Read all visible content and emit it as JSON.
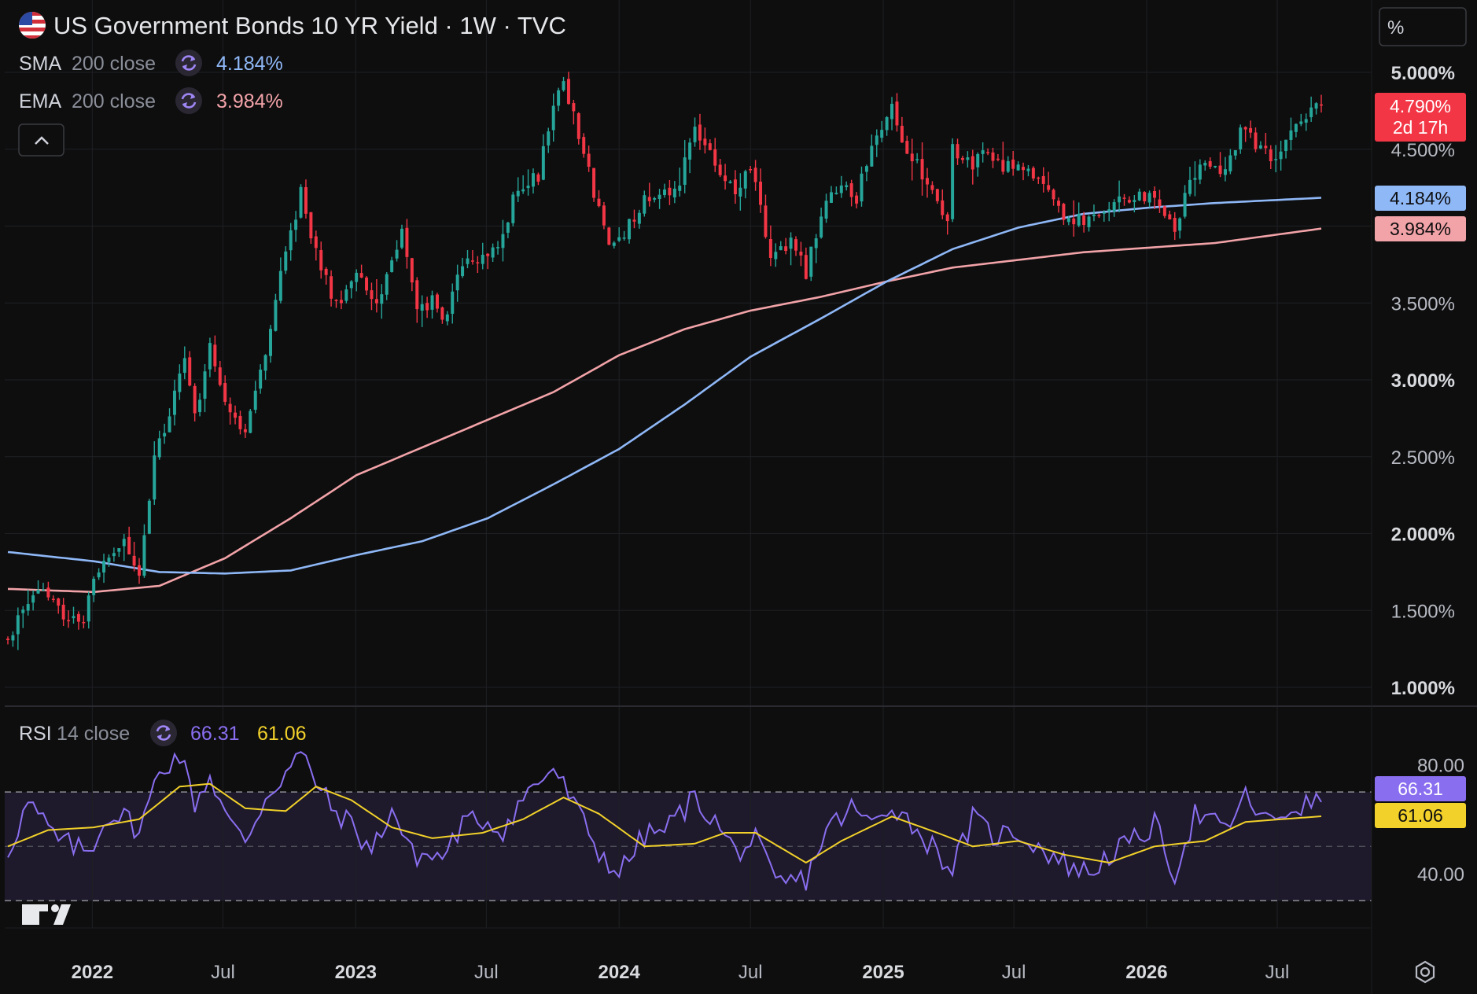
{
  "header": {
    "title": "US Government Bonds 10 YR Yield · 1W · TVC",
    "scale_button_label": "%",
    "collapse_icon": "chevron-up-icon",
    "flag_icon": "us-flag-icon",
    "settings_icon": "gear-icon"
  },
  "indicators": {
    "sma": {
      "name": "SMA",
      "args": "200 close",
      "value": "4.184%",
      "color": "#8fb8f7",
      "icon": "refresh-icon"
    },
    "ema": {
      "name": "EMA",
      "args": "200 close",
      "value": "3.984%",
      "color": "#f2a3a8",
      "icon": "refresh-icon"
    },
    "rsi": {
      "name": "RSI",
      "args": "14 close",
      "value": "66.31",
      "ma_value": "61.06",
      "color": "#8a6ef0",
      "ma_color": "#f2d12a",
      "icon": "refresh-icon"
    }
  },
  "price_tag": {
    "value": "4.790%",
    "countdown": "2d 17h",
    "color": "#f23645"
  },
  "colors": {
    "up": "#26a69a",
    "down": "#f23645",
    "background": "#0e0e0f",
    "grid": "#1f2024"
  },
  "chart_data": [
    {
      "type": "candlestick",
      "title": "US Government Bonds 10 YR Yield · 1W · TVC",
      "ylim": [
        1.0,
        5.0
      ],
      "yticks": [
        "5.000%",
        "4.500%",
        "4.000%",
        "3.500%",
        "3.000%",
        "2.500%",
        "2.000%",
        "1.500%",
        "1.000%"
      ],
      "xticks": [
        "2022",
        "Jul",
        "2023",
        "Jul",
        "2024",
        "Jul",
        "2025",
        "Jul",
        "2026",
        "Jul"
      ],
      "x_tick_dates": [
        "2022-01-01",
        "2022-07-01",
        "2023-01-01",
        "2023-07-01",
        "2024-01-01",
        "2024-07-01",
        "2025-01-01",
        "2025-07-01",
        "2026-01-01",
        "2026-07-01"
      ],
      "x_range": [
        "2021-09-06",
        "2026-08-31"
      ],
      "last_close": 4.79,
      "close_anchors": [
        [
          "2021-09-06",
          1.33
        ],
        [
          "2021-10-18",
          1.62
        ],
        [
          "2021-11-29",
          1.45
        ],
        [
          "2021-12-20",
          1.46
        ],
        [
          "2022-01-10",
          1.78
        ],
        [
          "2022-02-14",
          1.93
        ],
        [
          "2022-03-07",
          1.74
        ],
        [
          "2022-03-28",
          2.48
        ],
        [
          "2022-04-25",
          2.91
        ],
        [
          "2022-05-09",
          3.12
        ],
        [
          "2022-05-23",
          2.74
        ],
        [
          "2022-06-13",
          3.23
        ],
        [
          "2022-07-04",
          2.88
        ],
        [
          "2022-08-01",
          2.65
        ],
        [
          "2022-08-22",
          3.04
        ],
        [
          "2022-09-19",
          3.69
        ],
        [
          "2022-10-17",
          4.21
        ],
        [
          "2022-11-07",
          3.82
        ],
        [
          "2022-12-05",
          3.49
        ],
        [
          "2023-01-02",
          3.69
        ],
        [
          "2023-01-30",
          3.47
        ],
        [
          "2023-03-06",
          3.97
        ],
        [
          "2023-03-27",
          3.43
        ],
        [
          "2023-04-17",
          3.51
        ],
        [
          "2023-05-01",
          3.37
        ],
        [
          "2023-05-29",
          3.74
        ],
        [
          "2023-06-26",
          3.81
        ],
        [
          "2023-07-17",
          3.85
        ],
        [
          "2023-08-07",
          4.17
        ],
        [
          "2023-08-21",
          4.25
        ],
        [
          "2023-09-11",
          4.33
        ],
        [
          "2023-10-02",
          4.78
        ],
        [
          "2023-10-16",
          4.92
        ],
        [
          "2023-11-06",
          4.61
        ],
        [
          "2023-11-27",
          4.22
        ],
        [
          "2023-12-18",
          3.88
        ],
        [
          "2024-01-08",
          3.95
        ],
        [
          "2024-02-05",
          4.18
        ],
        [
          "2024-02-26",
          4.19
        ],
        [
          "2024-03-18",
          4.2
        ],
        [
          "2024-04-15",
          4.62
        ],
        [
          "2024-05-13",
          4.42
        ],
        [
          "2024-06-10",
          4.22
        ],
        [
          "2024-07-01",
          4.4
        ],
        [
          "2024-07-29",
          3.79
        ],
        [
          "2024-08-26",
          3.9
        ],
        [
          "2024-09-16",
          3.7
        ],
        [
          "2024-10-07",
          4.08
        ],
        [
          "2024-11-04",
          4.3
        ],
        [
          "2024-11-25",
          4.19
        ],
        [
          "2024-12-16",
          4.52
        ],
        [
          "2025-01-13",
          4.78
        ],
        [
          "2025-02-03",
          4.49
        ],
        [
          "2025-03-03",
          4.3
        ],
        [
          "2025-03-31",
          4.01
        ],
        [
          "2025-04-07",
          4.49
        ],
        [
          "2025-05-05",
          4.38
        ],
        [
          "2025-05-19",
          4.51
        ],
        [
          "2025-06-16",
          4.38
        ],
        [
          "2025-07-07",
          4.42
        ],
        [
          "2025-08-04",
          4.28
        ],
        [
          "2025-09-08",
          4.07
        ],
        [
          "2025-10-13",
          4.02
        ],
        [
          "2025-11-10",
          4.15
        ],
        [
          "2025-12-15",
          4.17
        ],
        [
          "2026-01-12",
          4.22
        ],
        [
          "2026-02-09",
          3.95
        ],
        [
          "2026-03-02",
          4.29
        ],
        [
          "2026-03-23",
          4.41
        ],
        [
          "2026-04-20",
          4.35
        ],
        [
          "2026-05-11",
          4.62
        ],
        [
          "2026-06-08",
          4.52
        ],
        [
          "2026-06-29",
          4.42
        ],
        [
          "2026-07-20",
          4.63
        ],
        [
          "2026-08-10",
          4.72
        ],
        [
          "2026-08-31",
          4.79
        ]
      ],
      "sma_200": [
        [
          "2021-09-06",
          1.88
        ],
        [
          "2022-01-03",
          1.82
        ],
        [
          "2022-04-04",
          1.75
        ],
        [
          "2022-07-04",
          1.74
        ],
        [
          "2022-10-03",
          1.76
        ],
        [
          "2023-01-02",
          1.86
        ],
        [
          "2023-04-03",
          1.95
        ],
        [
          "2023-07-03",
          2.1
        ],
        [
          "2023-10-02",
          2.32
        ],
        [
          "2024-01-01",
          2.55
        ],
        [
          "2024-04-01",
          2.84
        ],
        [
          "2024-07-01",
          3.15
        ],
        [
          "2024-10-07",
          3.4
        ],
        [
          "2025-01-06",
          3.64
        ],
        [
          "2025-04-07",
          3.85
        ],
        [
          "2025-07-07",
          3.99
        ],
        [
          "2025-10-06",
          4.08
        ],
        [
          "2026-01-05",
          4.12
        ],
        [
          "2026-04-06",
          4.15
        ],
        [
          "2026-08-31",
          4.184
        ]
      ],
      "ema_200": [
        [
          "2021-09-06",
          1.64
        ],
        [
          "2022-01-03",
          1.62
        ],
        [
          "2022-04-04",
          1.66
        ],
        [
          "2022-07-04",
          1.84
        ],
        [
          "2022-10-03",
          2.1
        ],
        [
          "2023-01-02",
          2.38
        ],
        [
          "2023-04-03",
          2.56
        ],
        [
          "2023-07-03",
          2.74
        ],
        [
          "2023-10-02",
          2.92
        ],
        [
          "2024-01-01",
          3.16
        ],
        [
          "2024-04-01",
          3.33
        ],
        [
          "2024-07-01",
          3.45
        ],
        [
          "2024-10-07",
          3.54
        ],
        [
          "2025-01-06",
          3.64
        ],
        [
          "2025-04-07",
          3.73
        ],
        [
          "2025-07-07",
          3.78
        ],
        [
          "2025-10-06",
          3.83
        ],
        [
          "2026-01-05",
          3.86
        ],
        [
          "2026-04-06",
          3.89
        ],
        [
          "2026-08-31",
          3.984
        ]
      ]
    },
    {
      "type": "line",
      "title": "RSI 14 close",
      "ylim": [
        20,
        90
      ],
      "yticks": [
        "80.00",
        "40.00"
      ],
      "bands": [
        30,
        70
      ],
      "midline": 50,
      "x_range": [
        "2021-09-06",
        "2026-08-31"
      ],
      "series": [
        {
          "name": "RSI",
          "values": [
            [
              "2021-09-06",
              48
            ],
            [
              "2021-10-04",
              66
            ],
            [
              "2021-11-15",
              52
            ],
            [
              "2021-12-27",
              48
            ],
            [
              "2022-01-24",
              62
            ],
            [
              "2022-02-21",
              60
            ],
            [
              "2022-03-07",
              55
            ],
            [
              "2022-04-04",
              78
            ],
            [
              "2022-05-02",
              84
            ],
            [
              "2022-05-23",
              66
            ],
            [
              "2022-06-13",
              76
            ],
            [
              "2022-07-11",
              58
            ],
            [
              "2022-08-01",
              52
            ],
            [
              "2022-08-29",
              68
            ],
            [
              "2022-10-17",
              84
            ],
            [
              "2022-11-28",
              64
            ],
            [
              "2022-12-26",
              58
            ],
            [
              "2023-01-23",
              48
            ],
            [
              "2023-02-20",
              64
            ],
            [
              "2023-03-20",
              47
            ],
            [
              "2023-05-01",
              46
            ],
            [
              "2023-05-29",
              58
            ],
            [
              "2023-06-26",
              60
            ],
            [
              "2023-07-24",
              56
            ],
            [
              "2023-08-21",
              68
            ],
            [
              "2023-10-02",
              79
            ],
            [
              "2023-11-06",
              62
            ],
            [
              "2023-12-04",
              48
            ],
            [
              "2024-01-01",
              40
            ],
            [
              "2024-02-05",
              54
            ],
            [
              "2024-03-04",
              56
            ],
            [
              "2024-04-15",
              68
            ],
            [
              "2024-05-13",
              59
            ],
            [
              "2024-06-10",
              48
            ],
            [
              "2024-07-08",
              52
            ],
            [
              "2024-08-05",
              36
            ],
            [
              "2024-09-16",
              38
            ],
            [
              "2024-10-14",
              56
            ],
            [
              "2024-11-18",
              64
            ],
            [
              "2024-12-16",
              58
            ],
            [
              "2025-01-13",
              66
            ],
            [
              "2025-02-17",
              56
            ],
            [
              "2025-03-17",
              48
            ],
            [
              "2025-04-07",
              42
            ],
            [
              "2025-05-05",
              60
            ],
            [
              "2025-06-02",
              54
            ],
            [
              "2025-07-07",
              55
            ],
            [
              "2025-08-04",
              50
            ],
            [
              "2025-09-08",
              44
            ],
            [
              "2025-10-13",
              40
            ],
            [
              "2025-11-10",
              47
            ],
            [
              "2025-12-15",
              52
            ],
            [
              "2026-01-12",
              58
            ],
            [
              "2026-02-09",
              40
            ],
            [
              "2026-03-09",
              62
            ],
            [
              "2026-04-20",
              56
            ],
            [
              "2026-05-18",
              68
            ],
            [
              "2026-06-22",
              58
            ],
            [
              "2026-07-20",
              64
            ],
            [
              "2026-08-31",
              66.31
            ]
          ]
        },
        {
          "name": "RSI MA",
          "values": [
            [
              "2021-09-06",
              50
            ],
            [
              "2021-11-01",
              56
            ],
            [
              "2022-01-03",
              57
            ],
            [
              "2022-03-07",
              60
            ],
            [
              "2022-05-02",
              72
            ],
            [
              "2022-06-13",
              73
            ],
            [
              "2022-08-01",
              64
            ],
            [
              "2022-09-26",
              63
            ],
            [
              "2022-11-07",
              72
            ],
            [
              "2022-12-26",
              67
            ],
            [
              "2023-02-20",
              57
            ],
            [
              "2023-04-17",
              53
            ],
            [
              "2023-06-26",
              55
            ],
            [
              "2023-08-21",
              60
            ],
            [
              "2023-10-16",
              68
            ],
            [
              "2023-12-04",
              62
            ],
            [
              "2024-02-05",
              50
            ],
            [
              "2024-04-15",
              51
            ],
            [
              "2024-05-27",
              55
            ],
            [
              "2024-07-08",
              55
            ],
            [
              "2024-09-16",
              44
            ],
            [
              "2024-11-04",
              52
            ],
            [
              "2025-01-13",
              61
            ],
            [
              "2025-03-17",
              55
            ],
            [
              "2025-05-05",
              50
            ],
            [
              "2025-07-07",
              52
            ],
            [
              "2025-09-08",
              47
            ],
            [
              "2025-11-10",
              44
            ],
            [
              "2026-01-12",
              50
            ],
            [
              "2026-03-23",
              52
            ],
            [
              "2026-05-18",
              59
            ],
            [
              "2026-08-31",
              61.06
            ]
          ]
        }
      ]
    }
  ]
}
